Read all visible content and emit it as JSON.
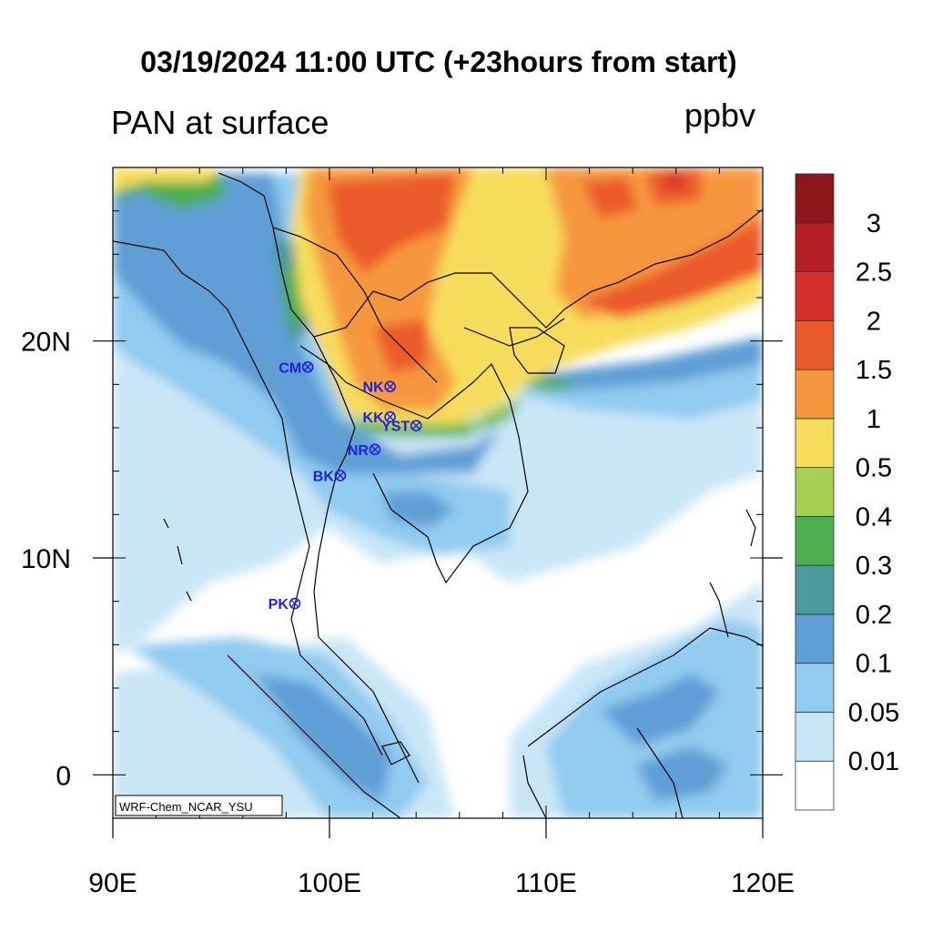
{
  "title": "03/19/2024 11:00 UTC (+23hours from start)",
  "left_subtitle": "PAN at surface",
  "units": "ppbv",
  "credit": "WRF-Chem_NCAR_YSU",
  "axes": {
    "lon_ticks": [
      {
        "v": 90,
        "label": "90E"
      },
      {
        "v": 100,
        "label": "100E"
      },
      {
        "v": 110,
        "label": "110E"
      },
      {
        "v": 120,
        "label": "120E"
      }
    ],
    "lat_ticks": [
      {
        "v": 20,
        "label": "20N"
      },
      {
        "v": 10,
        "label": "10N"
      },
      {
        "v": 0,
        "label": "0"
      }
    ],
    "lon_range": [
      90,
      120
    ],
    "lat_range": [
      -2,
      28
    ]
  },
  "colorbar": {
    "colors": [
      "#ffffff",
      "#c9e6f7",
      "#91cbef",
      "#5e9fd6",
      "#4a9a9b",
      "#4caf50",
      "#a4cf50",
      "#f7dc5c",
      "#f6973e",
      "#eb5a2b",
      "#d62f2b",
      "#b71f25",
      "#8d1719"
    ],
    "labels": [
      "0.01",
      "0.05",
      "0.1",
      "0.2",
      "0.3",
      "0.4",
      "0.5",
      "1",
      "1.5",
      "2",
      "2.5",
      "3"
    ]
  },
  "sites": [
    {
      "code": "CM",
      "lon": 99.0,
      "lat": 18.8
    },
    {
      "code": "NK",
      "lon": 102.8,
      "lat": 17.9
    },
    {
      "code": "KK",
      "lon": 102.8,
      "lat": 16.5
    },
    {
      "code": "YST",
      "lon": 104.0,
      "lat": 16.1
    },
    {
      "code": "NR",
      "lon": 102.1,
      "lat": 15.0
    },
    {
      "code": "BK",
      "lon": 100.5,
      "lat": 13.8
    },
    {
      "code": "PK",
      "lon": 98.4,
      "lat": 7.9
    }
  ]
}
